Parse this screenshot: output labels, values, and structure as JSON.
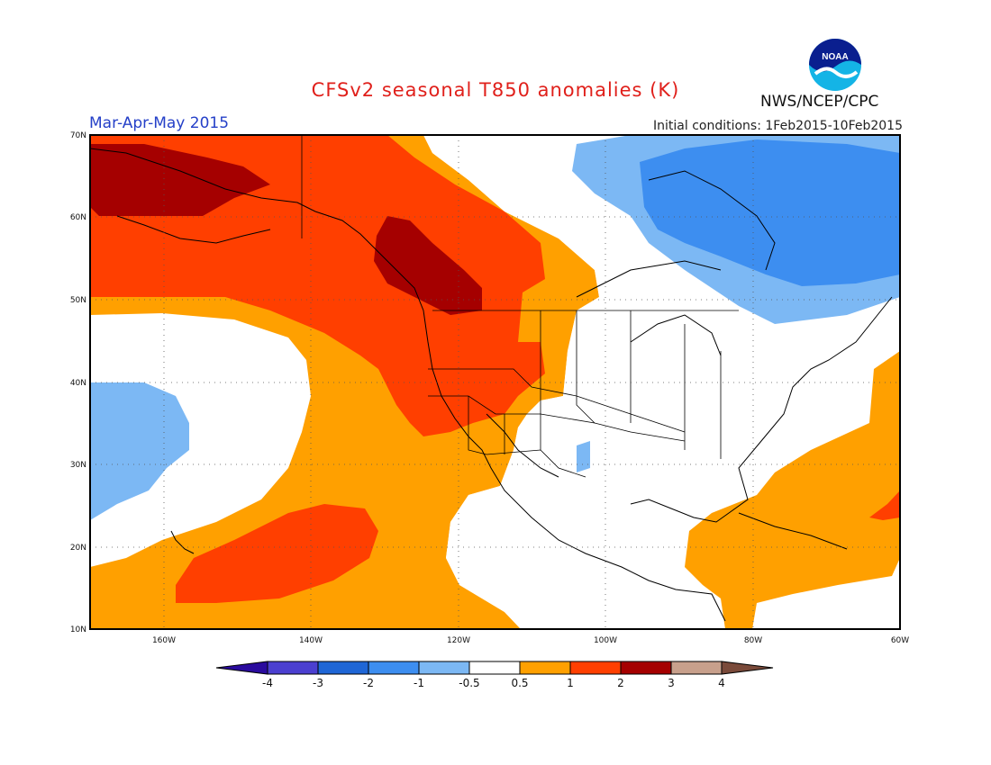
{
  "title": "CFSv2 seasonal T850 anomalies (K)",
  "period": "Mar-Apr-May 2015",
  "initial_conditions": "Initial conditions: 1Feb2015-10Feb2015",
  "organization": "NWS/NCEP/CPC",
  "logo_text": "NOAA",
  "map": {
    "lon_range": [
      -170,
      -60
    ],
    "lat_range": [
      10,
      70
    ],
    "lat_labels": [
      "10N",
      "20N",
      "30N",
      "40N",
      "50N",
      "60N",
      "70N"
    ],
    "lon_labels": [
      "160W",
      "140W",
      "120W",
      "100W",
      "80W",
      "60W"
    ],
    "gridlines": "dotted"
  },
  "colorbar": {
    "labels": [
      "-4",
      "-3",
      "-2",
      "-1",
      "-0.5",
      "0.5",
      "1",
      "2",
      "3",
      "4"
    ],
    "colors": [
      "#2a0b9e",
      "#4b3fd0",
      "#1f66d6",
      "#3d8ef0",
      "#7cb8f4",
      "#ffffff",
      "#ffa000",
      "#ff3f00",
      "#a50000",
      "#c8a08c",
      "#7a4a3a"
    ]
  },
  "regions": [
    {
      "category": "1 to 2",
      "color": "#ff3f00",
      "location": "Alaska, western Canada and Pacific Northwest"
    },
    {
      "category": "2 to 3",
      "color": "#a50000",
      "location": "western Alaska and British Columbia"
    },
    {
      "category": "0.5 to 1",
      "color": "#ffa000",
      "location": "eastern Pacific, Gulf of Mexico, Caribbean, western Atlantic"
    },
    {
      "category": "-1 to -0.5",
      "color": "#7cb8f4",
      "location": "Hudson Bay region and central Pacific near Hawaii"
    },
    {
      "category": "-2 to -1",
      "color": "#3d8ef0",
      "location": "Hudson Bay and Labrador"
    }
  ]
}
